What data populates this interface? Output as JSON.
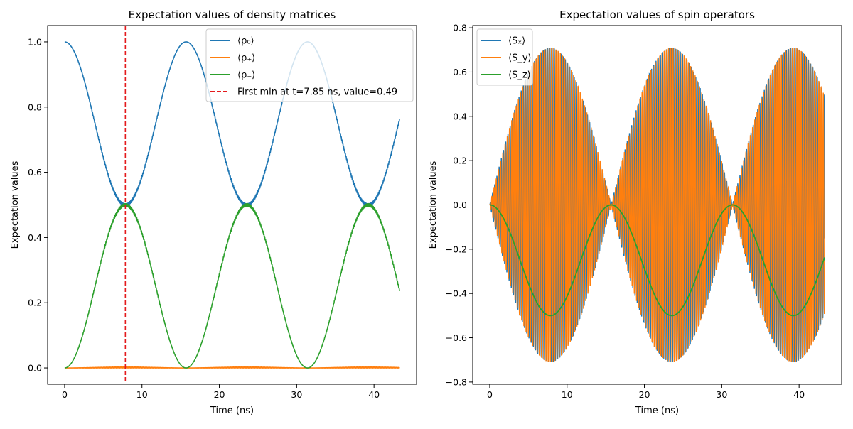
{
  "chart_data": [
    {
      "type": "line",
      "title": "Expectation values of density matrices",
      "xlabel": "Time (ns)",
      "ylabel": "Expectation values",
      "xlim": [
        -2.2,
        45.5
      ],
      "ylim": [
        -0.05,
        1.05
      ],
      "xticks": [
        "0",
        "10",
        "20",
        "30",
        "40"
      ],
      "xtick_values": [
        0,
        10,
        20,
        30,
        40
      ],
      "yticks": [
        "0.0",
        "0.2",
        "0.4",
        "0.6",
        "0.8",
        "1.0"
      ],
      "ytick_values": [
        0,
        0.2,
        0.4,
        0.6,
        0.8,
        1.0
      ],
      "legend_position": "top-right",
      "grid": false,
      "t_range": [
        0,
        43.3
      ],
      "period_ns": 15.7,
      "series": [
        {
          "name": "⟨ρ₀⟩",
          "color": "#1f77b4",
          "model": "0.75 + 0.25*cos(2*pi*t/15.7)",
          "start": 1.0,
          "end": 0.775,
          "min": 0.49,
          "max": 1.0
        },
        {
          "name": "⟨ρ₊⟩",
          "color": "#ff7f0e",
          "model": "≈0",
          "start": 0.0,
          "end": 0.0
        },
        {
          "name": "⟨ρ₋⟩",
          "color": "#2ca02c",
          "model": "0.25 - 0.25*cos(2*pi*t/15.7)",
          "start": 0.0,
          "end": 0.225,
          "min": 0.0,
          "max": 0.5
        }
      ],
      "vline": {
        "x": 7.85,
        "color": "#e41a1c",
        "style": "dashed",
        "label": "First min at t=7.85 ns, value=0.49"
      }
    },
    {
      "type": "line",
      "title": "Expectation values of spin operators",
      "xlabel": "Time (ns)",
      "ylabel": "Expectation values",
      "xlim": [
        -2.2,
        45.5
      ],
      "ylim": [
        -0.81,
        0.81
      ],
      "xticks": [
        "0",
        "10",
        "20",
        "30",
        "40"
      ],
      "xtick_values": [
        0,
        10,
        20,
        30,
        40
      ],
      "yticks": [
        "−0.8",
        "−0.6",
        "−0.4",
        "−0.2",
        "0.0",
        "0.2",
        "0.4",
        "0.6",
        "0.8"
      ],
      "ytick_values": [
        -0.8,
        -0.6,
        -0.4,
        -0.2,
        0,
        0.2,
        0.4,
        0.6,
        0.8
      ],
      "legend_position": "top-left",
      "grid": false,
      "t_range": [
        0,
        43.3
      ],
      "series": [
        {
          "name": "⟨Sₓ⟩",
          "color": "#1f77b4",
          "model": "fast oscillation, envelope ≈ 0.71*|sin(pi*t/15.7)|",
          "amplitude_max": 0.73
        },
        {
          "name": "⟨S_y⟩",
          "color": "#ff7f0e",
          "model": "fast oscillation, envelope ≈ 0.71*|sin(pi*t/15.7)|",
          "amplitude_max": 0.73
        },
        {
          "name": "⟨S_z⟩",
          "color": "#2ca02c",
          "model": "-0.25 + 0.25*cos(2*pi*t/15.7)",
          "start": 0.0,
          "end": -0.225,
          "min": -0.5,
          "max": 0.0
        }
      ]
    }
  ]
}
